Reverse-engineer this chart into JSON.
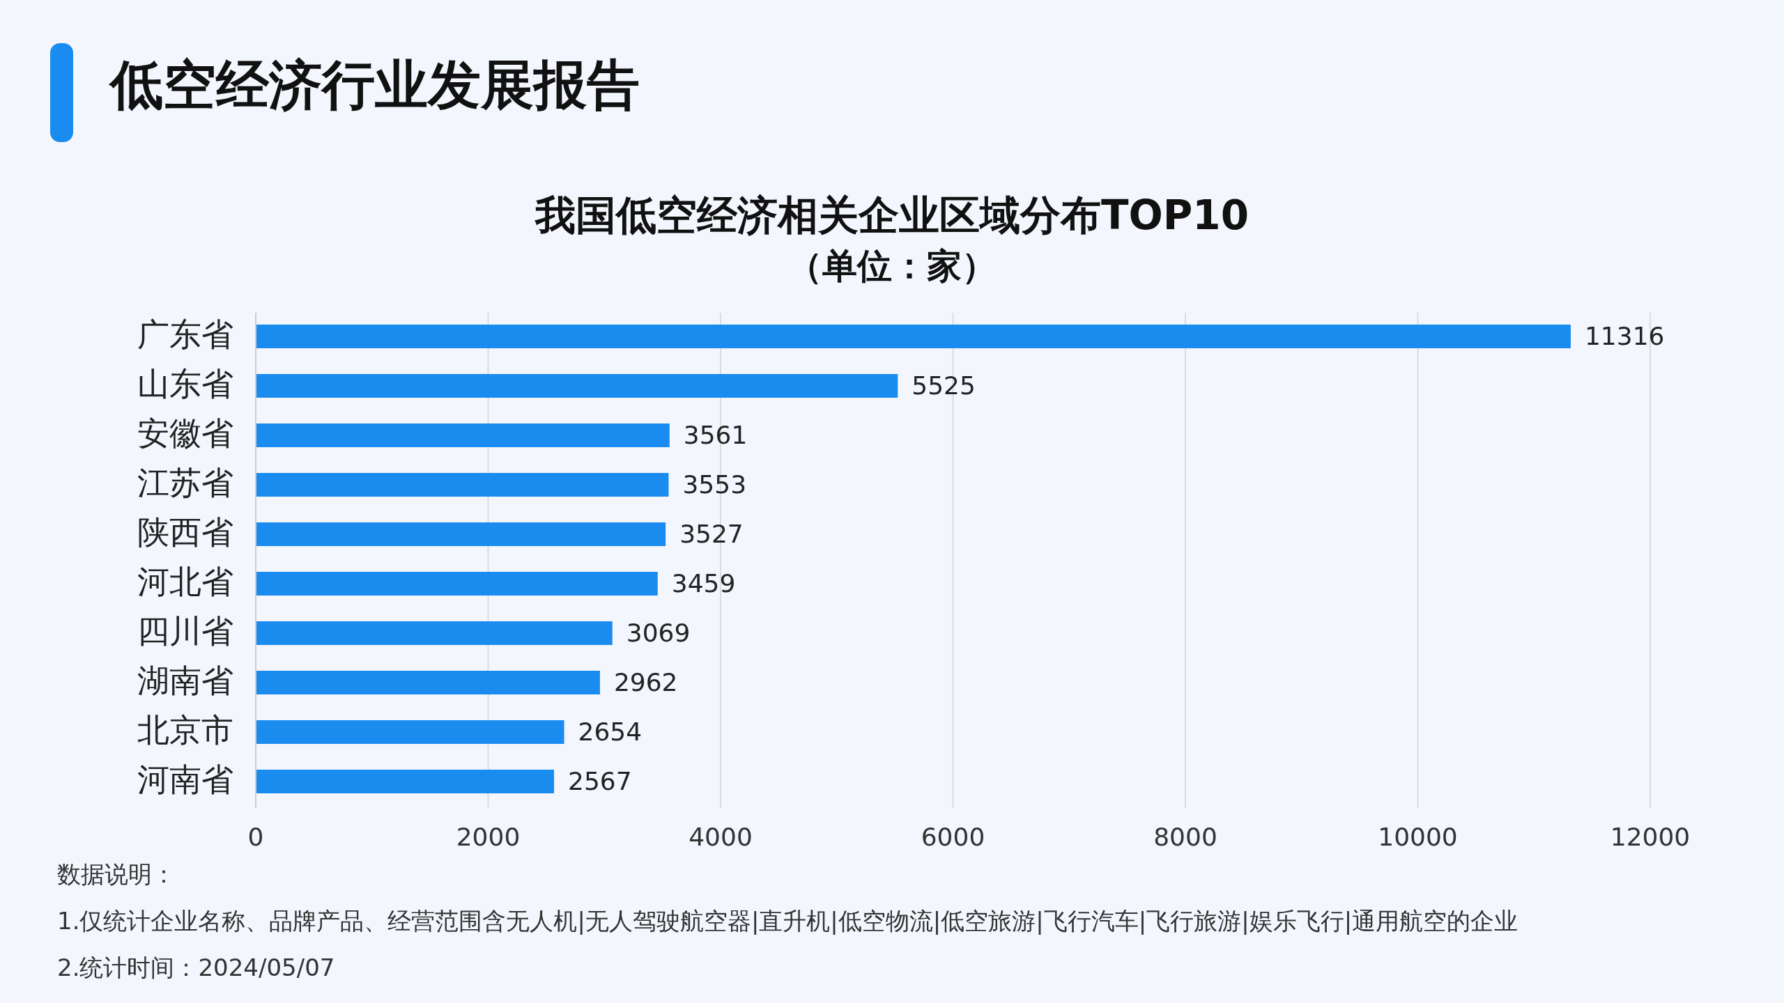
{
  "chart_data": {
    "type": "bar",
    "orientation": "horizontal",
    "title": "我国低空经济相关企业区域分布TOP10",
    "subtitle": "（单位：家）",
    "categories": [
      "广东省",
      "山东省",
      "安徽省",
      "江苏省",
      "陕西省",
      "河北省",
      "四川省",
      "湖南省",
      "北京市",
      "河南省"
    ],
    "values": [
      11316,
      5525,
      3561,
      3553,
      3527,
      3459,
      3069,
      2962,
      2654,
      2567
    ],
    "color": "#1a8cf0",
    "xlim": [
      0,
      12000
    ],
    "xticks": [
      0,
      2000,
      4000,
      6000,
      8000,
      10000,
      12000
    ],
    "grid": "x",
    "data_labels": true,
    "annotations": [
      "低空经济行业发展报告",
      "数据说明：",
      "1.仅统计企业名称、品牌产品、经营范围含无人机|无人驾驶航空器|直升机|低空物流|低空旅游|飞行汽车|飞行旅游|娱乐飞行|通用航空的企业",
      "2.统计时间：2024/05/07"
    ]
  }
}
